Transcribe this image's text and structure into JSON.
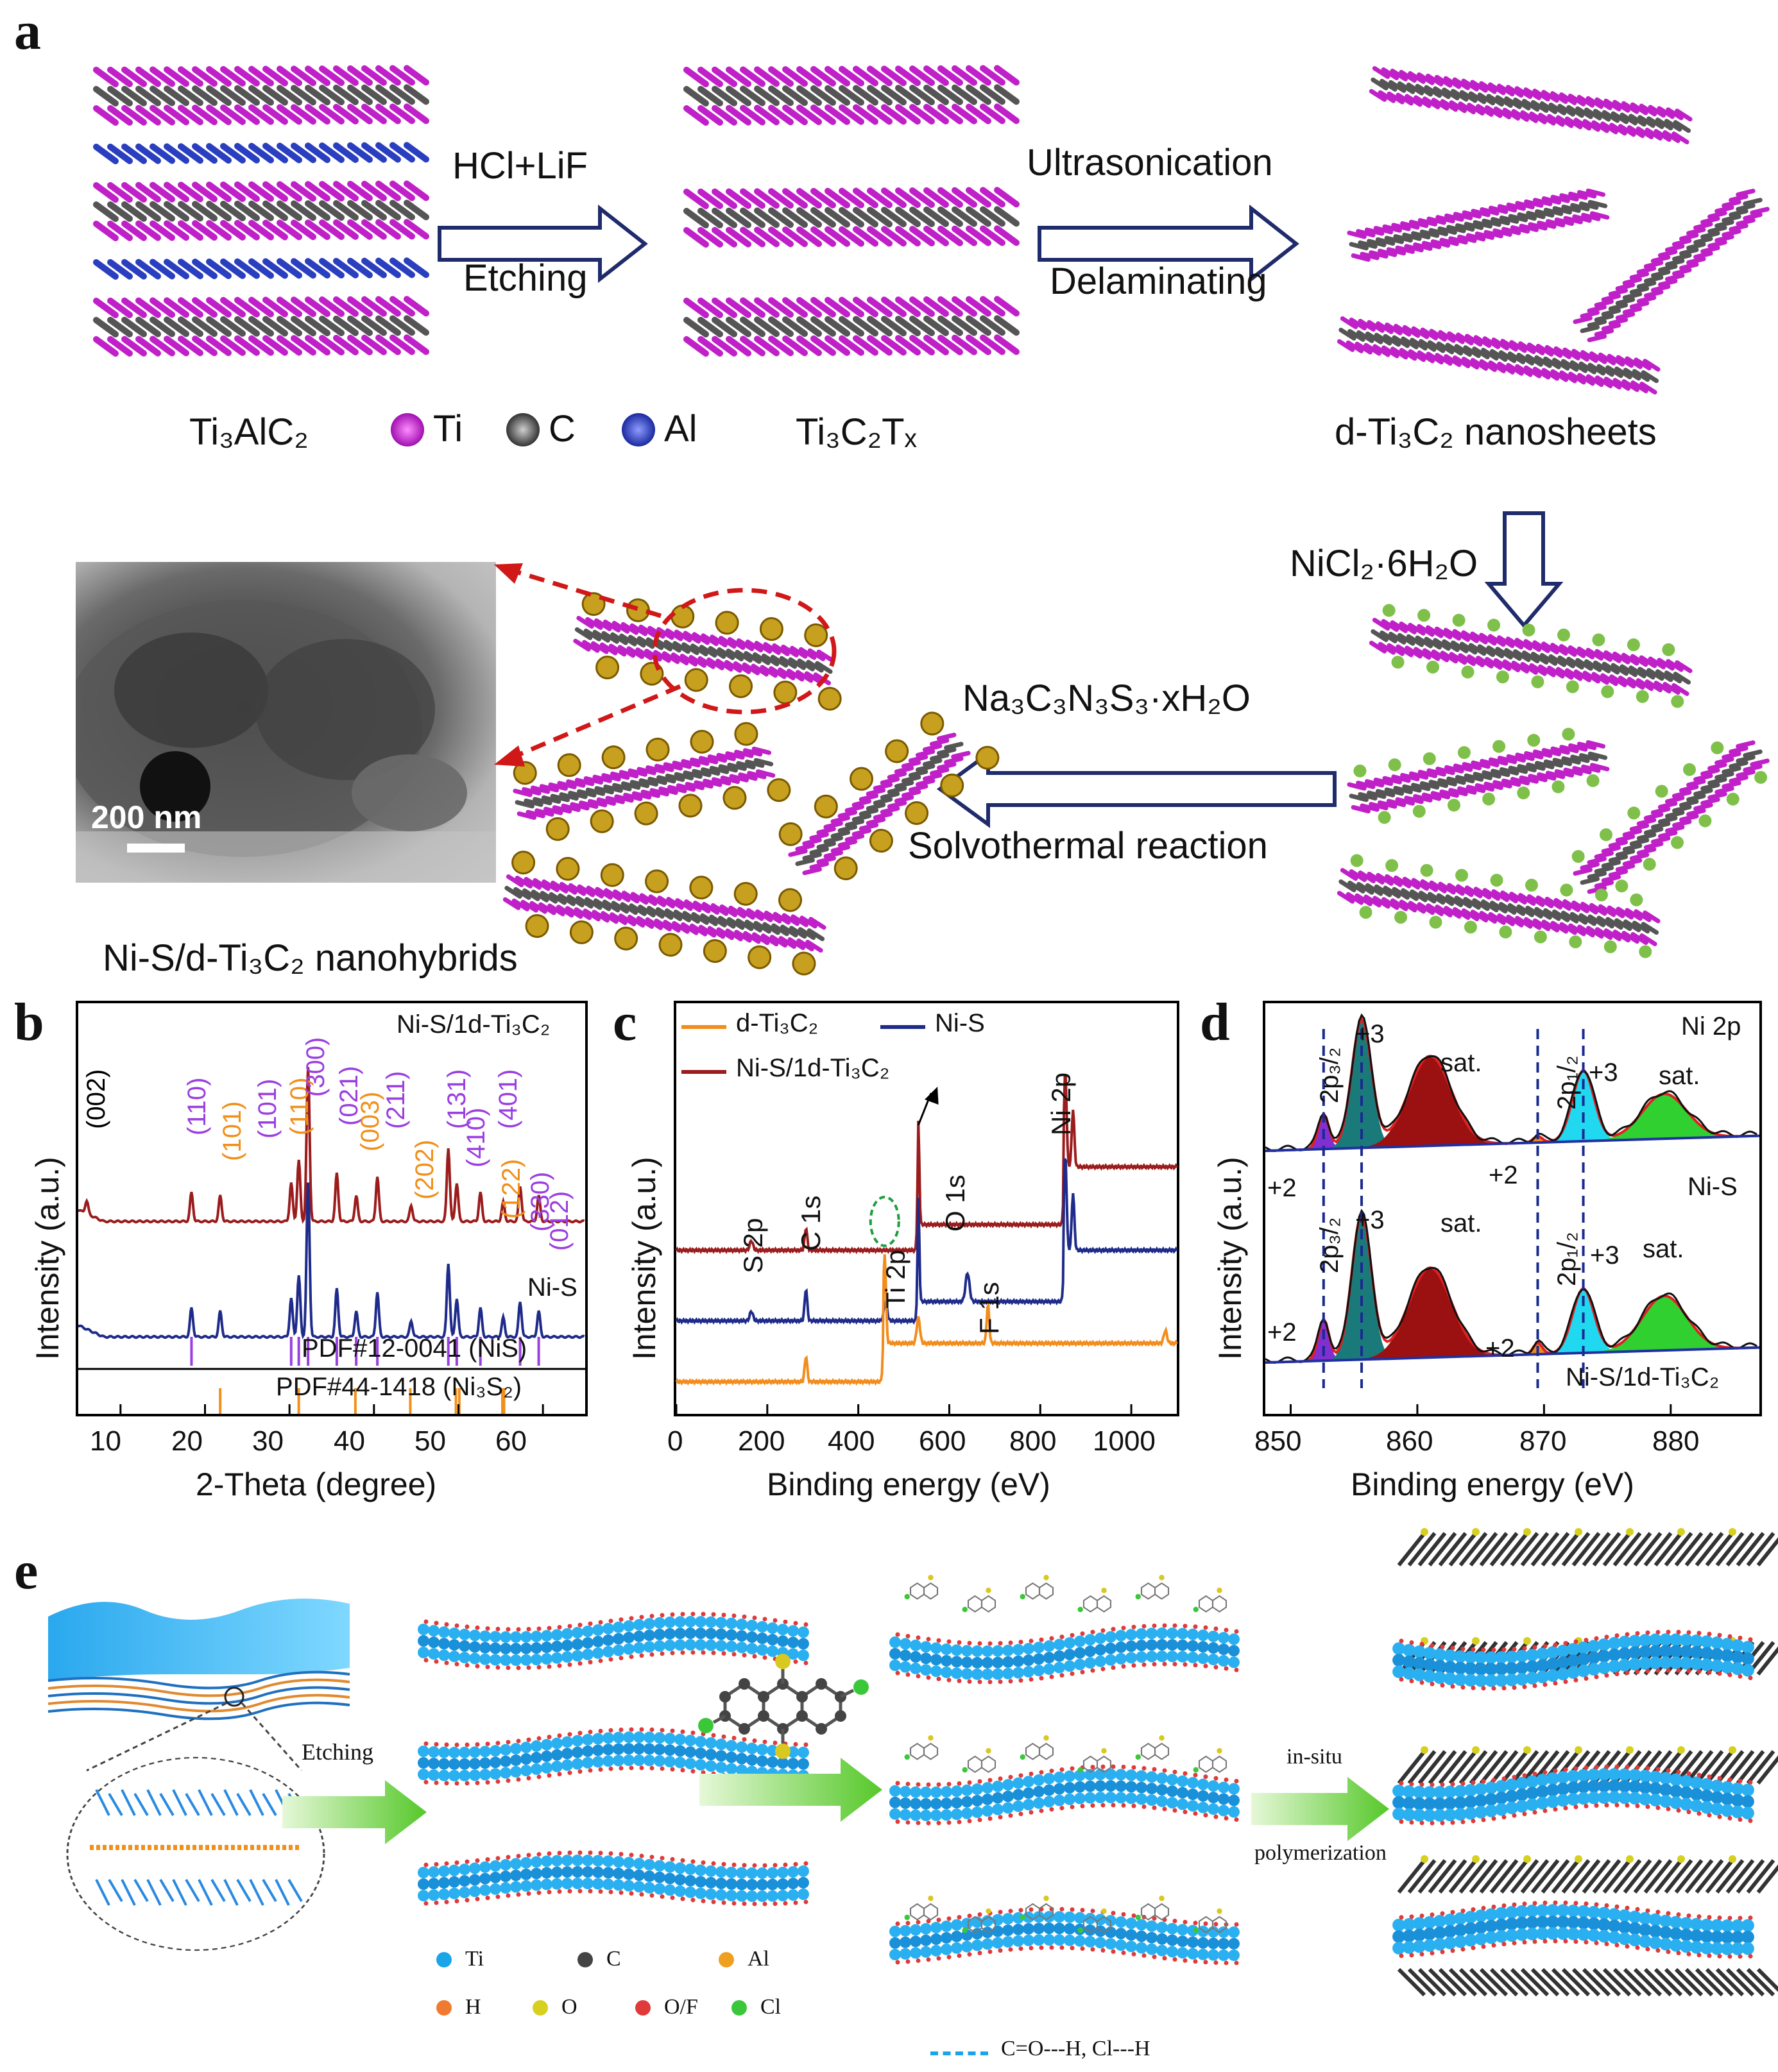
{
  "panel_a": {
    "label": "a",
    "legend_items": [
      {
        "symbol": "Ti",
        "color": "#c020c8"
      },
      {
        "symbol": "C",
        "color": "#555555"
      },
      {
        "symbol": "Al",
        "color": "#2a3fbf"
      }
    ],
    "steps": [
      {
        "top": "HCl+LiF",
        "bottom": "Etching"
      },
      {
        "top": "Ultrasonication",
        "bottom": "Delaminating"
      },
      {
        "top": "NiCl₂·6H₂O"
      },
      {
        "top": "Na₃C₃N₃S₃·xH₂O",
        "bottom": "Solvothermal reaction"
      }
    ],
    "names": {
      "precursor": "Ti₃AlC₂",
      "etched": "Ti₃C₂Tₓ",
      "delaminated": "d-Ti₃C₂ nanosheets",
      "product": "Ni-S/d-Ti₃C₂ nanohybrids"
    },
    "tem_scale": "200 nm"
  },
  "panel_b": {
    "label": "b",
    "ylabel": "Intensity (a.u.)",
    "xlabel": "2-Theta (degree)",
    "sample_top": "Ni-S/1d-Ti₃C₂",
    "sample_mid": "Ni-S",
    "ref1": "PDF#12-0041 (NiS)",
    "ref2": "PDF#44-1418 (Ni₃S₂)",
    "peak_labels": [
      {
        "text": "(002)",
        "color": "#000000"
      },
      {
        "text": "(110)",
        "color": "#9a3fe0"
      },
      {
        "text": "(101)",
        "color": "#f0901a"
      },
      {
        "text": "(101)",
        "color": "#9a3fe0"
      },
      {
        "text": "(110)",
        "color": "#f0901a"
      },
      {
        "text": "(300)",
        "color": "#9a3fe0"
      },
      {
        "text": "(021)",
        "color": "#9a3fe0"
      },
      {
        "text": "(003)",
        "color": "#f0901a"
      },
      {
        "text": "(211)",
        "color": "#9a3fe0"
      },
      {
        "text": "(202)",
        "color": "#f0901a"
      },
      {
        "text": "(131)",
        "color": "#9a3fe0"
      },
      {
        "text": "(410)",
        "color": "#9a3fe0"
      },
      {
        "text": "(401)",
        "color": "#9a3fe0"
      },
      {
        "text": "(122)",
        "color": "#f0901a"
      },
      {
        "text": "(330)",
        "color": "#9a3fe0"
      },
      {
        "text": "(012)",
        "color": "#9a3fe0"
      }
    ],
    "xticks": [
      "10",
      "20",
      "30",
      "40",
      "50",
      "60"
    ]
  },
  "panel_c": {
    "label": "c",
    "ylabel": "Intensity (a.u.)",
    "xlabel": "Binding energy (eV)",
    "legend": [
      {
        "name": "d-Ti₃C₂",
        "color": "#f28c1c"
      },
      {
        "name": "Ni-S",
        "color": "#1f2b8a"
      },
      {
        "name": "Ni-S/1d-Ti₃C₂",
        "color": "#9b1c1c"
      }
    ],
    "peaks": [
      "S 2p",
      "C 1s",
      "Ti 2p",
      "O 1s",
      "F 1s",
      "Ni 2p"
    ],
    "xticks": [
      "0",
      "200",
      "400",
      "600",
      "800",
      "1000"
    ]
  },
  "panel_d": {
    "label": "d",
    "ylabel": "Intensity (a.u.)",
    "xlabel": "Binding energy (eV)",
    "title": "Ni 2p",
    "sample_top": "Ni-S",
    "sample_bot": "Ni-S/1d-Ti₃C₂",
    "labels": {
      "p32": "2p₃/₂",
      "p12": "2p₁/₂",
      "plus3": "+3",
      "plus2": "+2",
      "sat": "sat."
    },
    "xticks": [
      "850",
      "860",
      "870",
      "880"
    ]
  },
  "panel_e": {
    "label": "e",
    "arrow1": "Etching",
    "arrow3_top": "in-situ",
    "arrow3_bot": "polymerization",
    "legend": [
      {
        "symbol": "Ti",
        "color": "#1aa5e8"
      },
      {
        "symbol": "C",
        "color": "#444444"
      },
      {
        "symbol": "Al",
        "color": "#f0a020"
      },
      {
        "symbol": "H",
        "color": "#f07a30"
      },
      {
        "symbol": "O",
        "color": "#d8d020"
      },
      {
        "symbol": "O/F",
        "color": "#e03a3a"
      },
      {
        "symbol": "Cl",
        "color": "#3ac83a"
      }
    ],
    "hbond": "C=O---H, Cl---H"
  }
}
